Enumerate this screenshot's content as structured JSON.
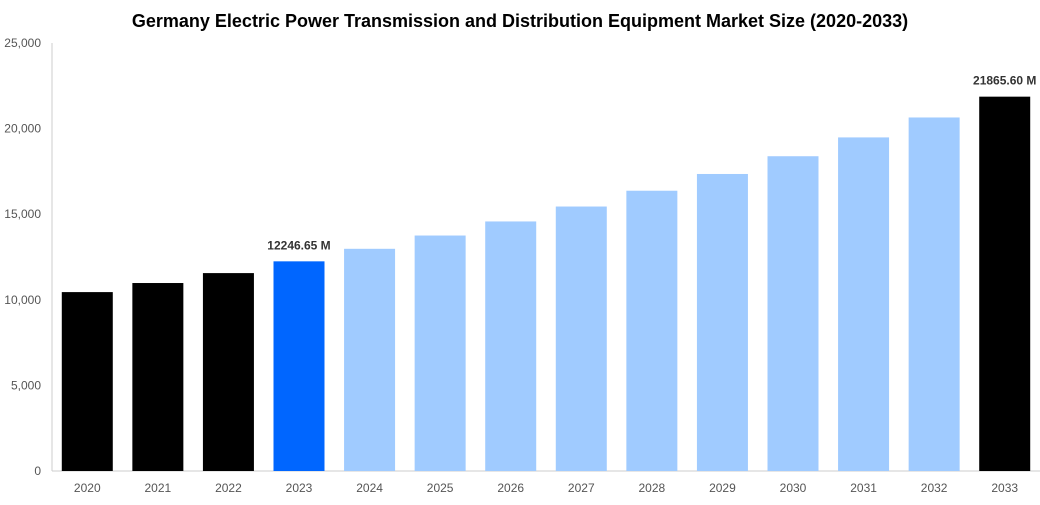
{
  "chart_data": {
    "type": "bar",
    "title": "Germany Electric Power Transmission and Distribution Equipment Market Size (2020-2033)",
    "xlabel": "",
    "ylabel": "",
    "ylim": [
      0,
      25000
    ],
    "yticks": [
      "0",
      "5,000",
      "10,000",
      "15,000",
      "20,000",
      "25,000"
    ],
    "ytick_values": [
      0,
      5000,
      10000,
      15000,
      20000,
      25000
    ],
    "grid": false,
    "categories": [
      "2020",
      "2021",
      "2022",
      "2023",
      "2024",
      "2025",
      "2026",
      "2027",
      "2028",
      "2029",
      "2030",
      "2031",
      "2032",
      "2033"
    ],
    "values": [
      10450,
      10980,
      11560,
      12246.65,
      12978.6,
      13754.3,
      14576.4,
      15447.6,
      16370.9,
      17349.4,
      18386.3,
      19485.3,
      20649.9,
      21865.6
    ],
    "bar_colors": [
      "#000000",
      "#000000",
      "#000000",
      "#0066ff",
      "#a0cbff",
      "#a0cbff",
      "#a0cbff",
      "#a0cbff",
      "#a0cbff",
      "#a0cbff",
      "#a0cbff",
      "#a0cbff",
      "#a0cbff",
      "#000000"
    ],
    "data_labels": [
      {
        "category": "2023",
        "text": "12246.65 M"
      },
      {
        "category": "2033",
        "text": "21865.60 M"
      }
    ]
  }
}
